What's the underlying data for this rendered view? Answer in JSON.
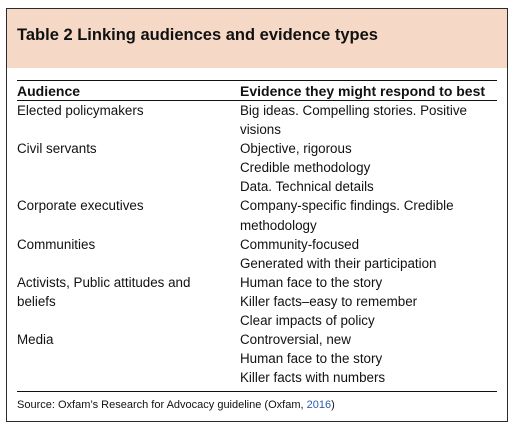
{
  "table": {
    "title": "Table 2 Linking audiences and evidence types",
    "headers": {
      "audience": "Audience",
      "evidence": "Evidence they might respond to best"
    },
    "rows": [
      {
        "audience": "Elected policymakers",
        "evidence": [
          "Big ideas. Compelling stories. Positive\nvisions"
        ]
      },
      {
        "audience": "Civil servants",
        "evidence": [
          "Objective, rigorous",
          "Credible methodology",
          "Data. Technical details"
        ]
      },
      {
        "audience": "Corporate executives",
        "evidence": [
          "Company-specific findings. Credible\nmethodology"
        ]
      },
      {
        "audience": "Communities",
        "evidence": [
          "Community-focused",
          "Generated with their participation"
        ]
      },
      {
        "audience": "Activists, Public attitudes and\nbeliefs",
        "evidence": [
          "Human face to the story",
          "Killer facts–easy to remember",
          "Clear impacts of policy"
        ]
      },
      {
        "audience": "Media",
        "evidence": [
          "Controversial, new",
          "Human face to the story",
          "Killer facts with numbers"
        ]
      }
    ],
    "source": {
      "text": "Source: Oxfam’s Research for Advocacy guideline (Oxfam, ",
      "year": "2016",
      "close": ")"
    }
  },
  "colors": {
    "title_band": "#f5d9c6",
    "border": "#2b2b2b",
    "link": "#2a5db0"
  }
}
